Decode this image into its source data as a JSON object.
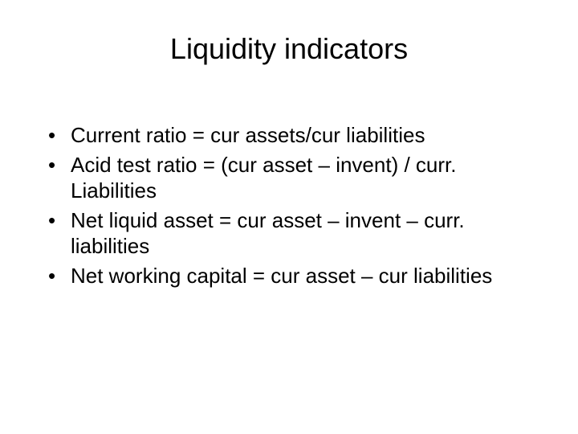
{
  "slide": {
    "title": "Liquidity indicators",
    "title_fontsize": 36,
    "body_fontsize": 26,
    "background_color": "#ffffff",
    "text_color": "#000000",
    "font_family": "Arial",
    "bullets": [
      "Current ratio = cur assets/cur liabilities",
      "Acid test ratio = (cur asset – invent) / curr. Liabilities",
      "Net liquid asset = cur asset – invent – curr. liabilities",
      "Net working capital = cur asset – cur liabilities"
    ]
  }
}
